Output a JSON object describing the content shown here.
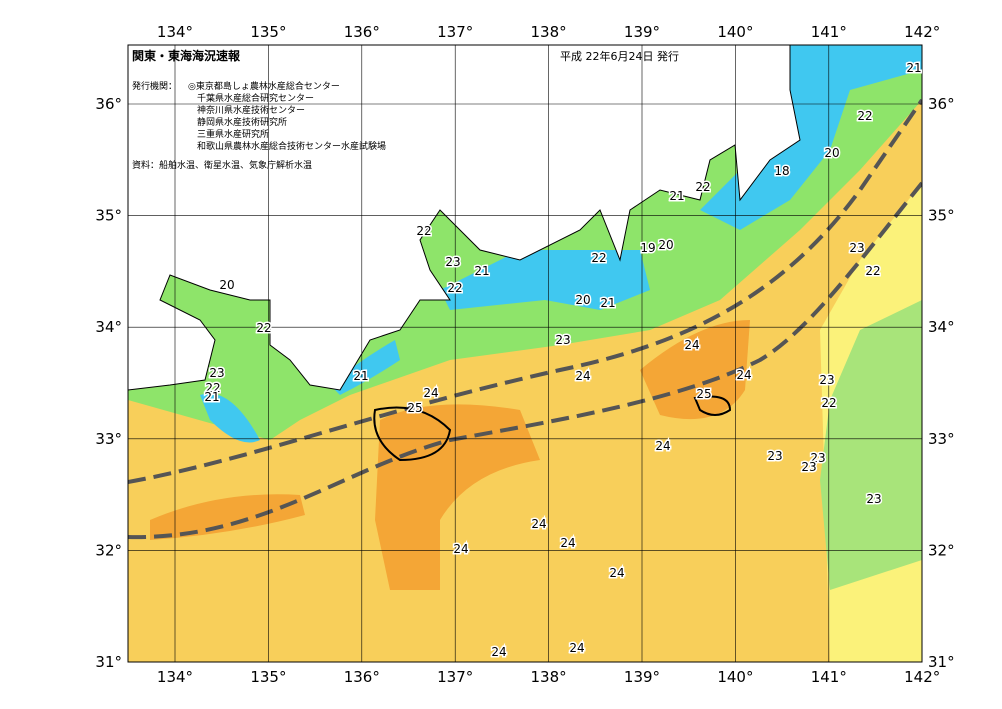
{
  "header": {
    "title": "関東・東海海況速報",
    "date": "平成 22年6月24日 発行"
  },
  "issuers": {
    "label": "発行機関：",
    "organizations": [
      "◎東京都島しょ農林水産総合センター",
      "千葉県水産総合研究センター",
      "神奈川県水産技術センター",
      "静岡県水産技術研究所",
      "三重県水産研究所",
      "和歌山県農林水産総合技術センター水産試験場"
    ]
  },
  "source": "資料：船舶水温、衛星水温、気象庁解析水温",
  "axes": {
    "longitude_labels": [
      "134°",
      "135°",
      "136°",
      "137°",
      "138°",
      "139°",
      "140°",
      "141°",
      "142°"
    ],
    "latitude_labels": [
      "36°",
      "35°",
      "34°",
      "33°",
      "32°",
      "31°"
    ]
  },
  "contour_labels": [
    "21",
    "22",
    "20",
    "18",
    "22",
    "21",
    "22",
    "23",
    "21",
    "22",
    "22",
    "19",
    "20",
    "20",
    "21",
    "20",
    "22",
    "23",
    "24",
    "23",
    "22",
    "21",
    "23",
    "22",
    "21",
    "24",
    "24",
    "25",
    "24",
    "25",
    "23",
    "22",
    "24",
    "23",
    "23",
    "23",
    "23",
    "24",
    "24",
    "24",
    "24",
    "24",
    "24"
  ]
}
